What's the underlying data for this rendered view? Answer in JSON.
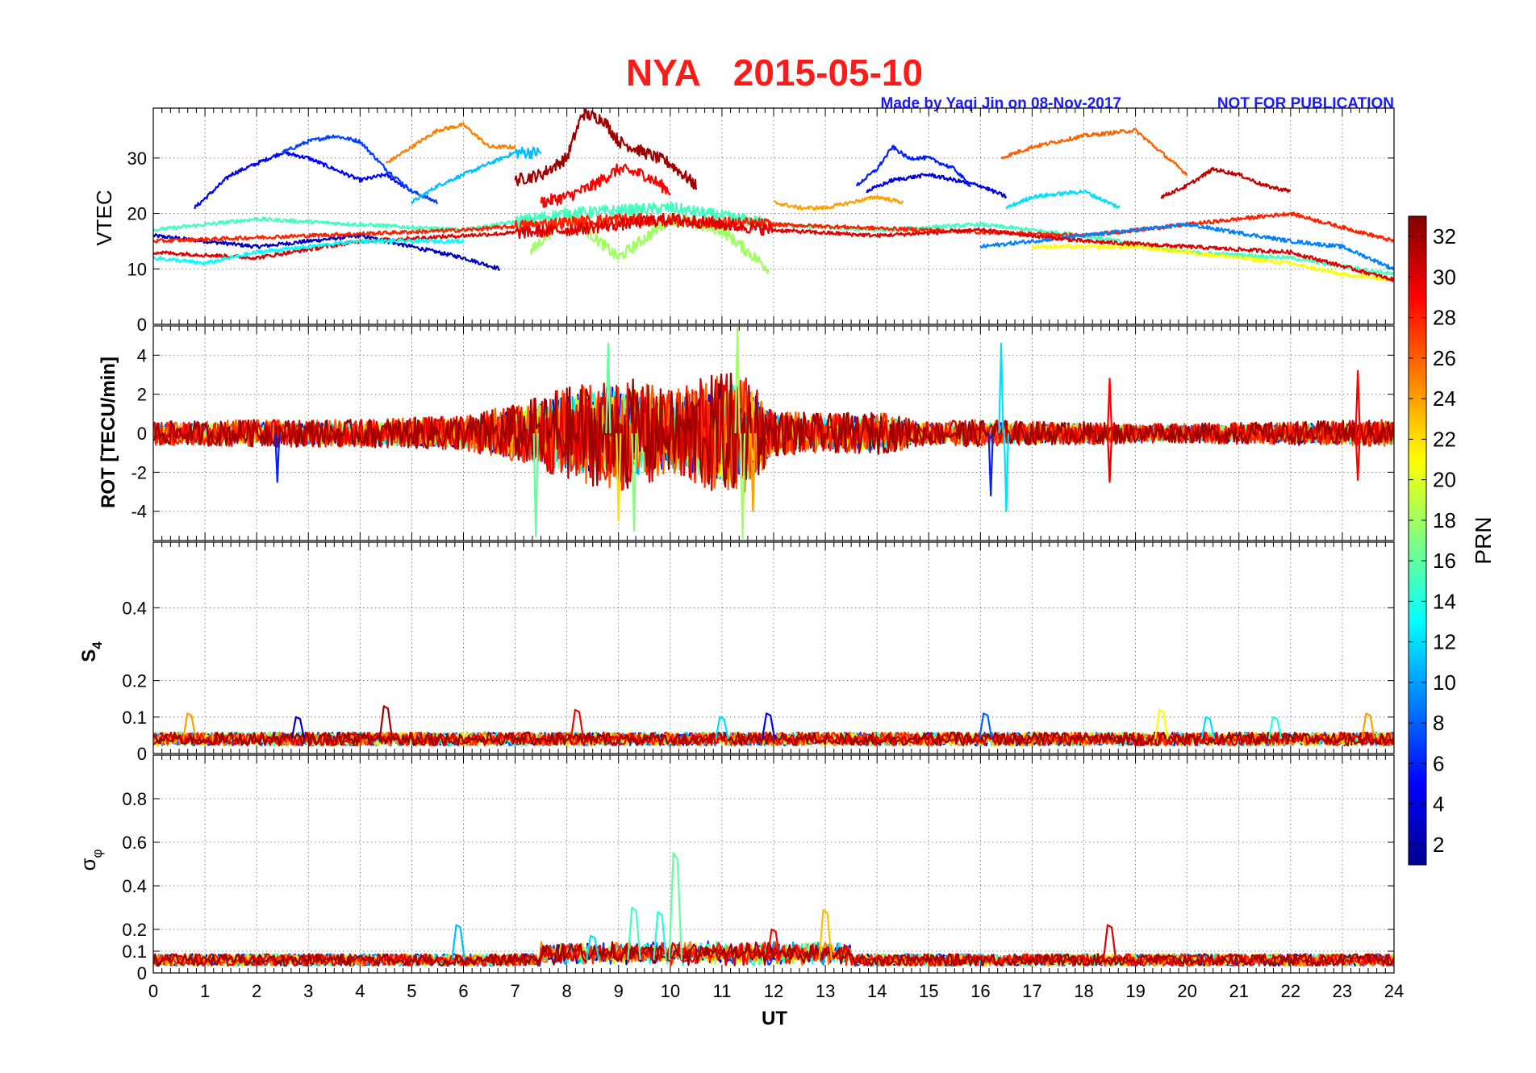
{
  "header": {
    "title_station": "NYA",
    "title_date": "2015-05-10",
    "credit": "Made by Yaqi Jin on 08-Nov-2017",
    "notice": "NOT FOR PUBLICATION"
  },
  "colors": {
    "title": "#ff1a1a",
    "credit": "#1a1aff"
  },
  "chart_data": [
    {
      "type": "line",
      "panel": "VTEC",
      "ylabel": "VTEC",
      "xlim": [
        0,
        24
      ],
      "ylim": [
        0,
        39
      ],
      "yticks": [
        0,
        10,
        20,
        30
      ],
      "series": [
        {
          "prn": 3,
          "x": [
            0.0,
            1.0,
            2.0,
            3.0,
            4.0,
            5.0,
            6.0,
            6.7
          ],
          "values": [
            16,
            15,
            14,
            15,
            16,
            14,
            12,
            10
          ]
        },
        {
          "prn": 5,
          "x": [
            0.8,
            1.5,
            2.0,
            2.5,
            3.0,
            3.5,
            4.0,
            4.5,
            5.0
          ],
          "values": [
            21,
            27,
            29,
            31,
            30,
            28,
            26,
            27,
            24
          ]
        },
        {
          "prn": 7,
          "x": [
            2.5,
            3.0,
            3.5,
            4.0,
            4.5,
            5.0,
            5.5
          ],
          "values": [
            31,
            33,
            34,
            33,
            28,
            24,
            22
          ]
        },
        {
          "prn": 11,
          "x": [
            5.0,
            5.5,
            6.0,
            6.5,
            7.0,
            7.5
          ],
          "values": [
            22,
            25,
            27,
            29,
            31,
            31
          ]
        },
        {
          "prn": 25,
          "x": [
            4.5,
            5.0,
            5.5,
            6.0,
            6.5,
            7.0
          ],
          "values": [
            29,
            32,
            35,
            36,
            32,
            32
          ]
        },
        {
          "prn": 32,
          "x": [
            7.0,
            7.5,
            8.0,
            8.3,
            8.7,
            9.0,
            9.5,
            10.0,
            10.5
          ],
          "values": [
            26,
            27,
            30,
            38,
            37,
            33,
            31,
            29,
            25
          ]
        },
        {
          "prn": 29,
          "x": [
            7.5,
            8.0,
            8.5,
            9.0,
            9.5,
            10.0
          ],
          "values": [
            22,
            23,
            25,
            28,
            27,
            24
          ]
        },
        {
          "prn": 18,
          "x": [
            7.3,
            8.0,
            9.0,
            10.0,
            11.0,
            11.9
          ],
          "values": [
            13,
            20,
            12,
            19,
            17,
            10
          ]
        },
        {
          "prn": 15,
          "x": [
            0.0,
            2.0,
            4.0,
            6.0,
            8.0,
            10.0,
            12.0,
            14.0,
            16.0,
            18.0,
            20.0,
            22.0,
            24.0
          ],
          "values": [
            17,
            19,
            18,
            17,
            20,
            21,
            18,
            17,
            18,
            16,
            13,
            12,
            9
          ]
        },
        {
          "prn": 24,
          "x": [
            12.0,
            12.5,
            13.0,
            13.5,
            14.0,
            14.5
          ],
          "values": [
            22,
            21,
            21,
            22,
            23,
            22
          ]
        },
        {
          "prn": 6,
          "x": [
            13.6,
            14.0,
            14.3,
            14.6,
            15.0,
            15.5,
            15.8
          ],
          "values": [
            25,
            28,
            32,
            30,
            30,
            28,
            25
          ]
        },
        {
          "prn": 4,
          "x": [
            13.8,
            14.3,
            15.0,
            15.5,
            16.0,
            16.5
          ],
          "values": [
            24,
            26,
            27,
            26,
            25,
            23
          ]
        },
        {
          "prn": 12,
          "x": [
            16.5,
            17.0,
            18.0,
            18.7
          ],
          "values": [
            21,
            23,
            24,
            21
          ]
        },
        {
          "prn": 26,
          "x": [
            16.4,
            17.0,
            18.0,
            19.0,
            19.5,
            20.0
          ],
          "values": [
            30,
            32,
            34,
            35,
            31,
            27
          ]
        },
        {
          "prn": 31,
          "x": [
            19.5,
            20.0,
            20.5,
            21.0,
            21.5,
            22.0
          ],
          "values": [
            23,
            25,
            28,
            27,
            25,
            24
          ]
        },
        {
          "prn": 28,
          "x": [
            0.0,
            3.0,
            6.0,
            9.0,
            12.0,
            15.0,
            18.0,
            21.0,
            22.0,
            24.0
          ],
          "values": [
            15,
            16,
            17,
            19,
            18,
            17,
            16,
            19,
            20,
            15
          ]
        },
        {
          "prn": 9,
          "x": [
            16.0,
            18.0,
            20.0,
            22.0,
            23.0,
            24.0
          ],
          "values": [
            14,
            16,
            18,
            15,
            14,
            10
          ]
        },
        {
          "prn": 21,
          "x": [
            17.0,
            19.0,
            21.0,
            22.0,
            23.0,
            24.0
          ],
          "values": [
            14,
            14,
            12,
            11,
            9,
            8
          ]
        },
        {
          "prn": 30,
          "x": [
            0.0,
            2.0,
            4.0,
            6.0,
            8.0,
            10.0,
            12.0,
            14.0,
            16.0,
            18.0,
            20.0,
            22.0,
            24.0
          ],
          "values": [
            13,
            12,
            15,
            16,
            17,
            19,
            17,
            16,
            17,
            15,
            14,
            13,
            8
          ]
        },
        {
          "prn": 13,
          "x": [
            0.0,
            1.0,
            2.0,
            3.0,
            4.0,
            5.0,
            6.0
          ],
          "values": [
            12,
            11,
            13,
            14,
            15,
            15,
            15
          ]
        }
      ]
    },
    {
      "type": "line",
      "panel": "ROT",
      "ylabel": "ROT [TECU/min]",
      "xlim": [
        0,
        24
      ],
      "ylim": [
        -5.5,
        5.5
      ],
      "yticks": [
        -4,
        -2,
        0,
        2,
        4
      ],
      "envelope": {
        "x": [
          0,
          2,
          4,
          6,
          7,
          8,
          9,
          10,
          11,
          11.5,
          12,
          13,
          14,
          15,
          16,
          17,
          18,
          19,
          20,
          22,
          24
        ],
        "amplitude": [
          0.6,
          0.7,
          0.7,
          0.9,
          1.5,
          2.4,
          3.0,
          2.2,
          3.2,
          3.0,
          1.2,
          1.0,
          1.1,
          0.6,
          0.7,
          0.6,
          0.6,
          0.5,
          0.5,
          0.6,
          0.7
        ]
      },
      "spikes": [
        {
          "x": 2.4,
          "value": -2.5,
          "prn": 6
        },
        {
          "x": 7.4,
          "value": -5.3,
          "prn": 16
        },
        {
          "x": 8.8,
          "value": 4.6,
          "prn": 16
        },
        {
          "x": 9.0,
          "value": -4.5,
          "prn": 22
        },
        {
          "x": 9.3,
          "value": -5.0,
          "prn": 17
        },
        {
          "x": 11.3,
          "value": 5.4,
          "prn": 18
        },
        {
          "x": 11.4,
          "value": -5.4,
          "prn": 18
        },
        {
          "x": 11.6,
          "value": -4.0,
          "prn": 24
        },
        {
          "x": 16.2,
          "value": -3.2,
          "prn": 6
        },
        {
          "x": 16.4,
          "value": 4.6,
          "prn": 12
        },
        {
          "x": 16.5,
          "value": -4.0,
          "prn": 12
        },
        {
          "x": 18.5,
          "value": 2.8,
          "prn": 29
        },
        {
          "x": 18.5,
          "value": -2.5,
          "prn": 30
        },
        {
          "x": 23.3,
          "value": 3.2,
          "prn": 29
        },
        {
          "x": 23.3,
          "value": -2.4,
          "prn": 29
        }
      ]
    },
    {
      "type": "line",
      "panel": "S4",
      "ylabel": "S",
      "ylabel_sub": "4",
      "xlim": [
        0,
        24
      ],
      "ylim": [
        0,
        0.58
      ],
      "yticks": [
        0,
        0.1,
        0.2,
        0.4
      ],
      "baseline": 0.04,
      "bumps": [
        {
          "x": 0.7,
          "value": 0.11,
          "prn": 24
        },
        {
          "x": 2.8,
          "value": 0.1,
          "prn": 3
        },
        {
          "x": 4.5,
          "value": 0.13,
          "prn": 32
        },
        {
          "x": 8.2,
          "value": 0.12,
          "prn": 29
        },
        {
          "x": 11.0,
          "value": 0.1,
          "prn": 12
        },
        {
          "x": 11.9,
          "value": 0.11,
          "prn": 5
        },
        {
          "x": 16.1,
          "value": 0.11,
          "prn": 8
        },
        {
          "x": 19.5,
          "value": 0.12,
          "prn": 21
        },
        {
          "x": 20.4,
          "value": 0.1,
          "prn": 12
        },
        {
          "x": 21.7,
          "value": 0.1,
          "prn": 14
        },
        {
          "x": 23.5,
          "value": 0.11,
          "prn": 24
        }
      ]
    },
    {
      "type": "line",
      "panel": "sigma_phi",
      "ylabel": "σ",
      "ylabel_sub": "φ",
      "xlim": [
        0,
        24
      ],
      "ylim": [
        0,
        1.0
      ],
      "yticks": [
        0,
        0.1,
        0.2,
        0.4,
        0.6,
        0.8
      ],
      "baseline": 0.06,
      "bumps": [
        {
          "x": 5.9,
          "value": 0.22,
          "prn": 11
        },
        {
          "x": 8.5,
          "value": 0.17,
          "prn": 12
        },
        {
          "x": 9.3,
          "value": 0.3,
          "prn": 15
        },
        {
          "x": 9.8,
          "value": 0.28,
          "prn": 14
        },
        {
          "x": 10.1,
          "value": 0.55,
          "prn": 16
        },
        {
          "x": 12.0,
          "value": 0.2,
          "prn": 29
        },
        {
          "x": 13.0,
          "value": 0.29,
          "prn": 23
        },
        {
          "x": 18.5,
          "value": 0.22,
          "prn": 30
        }
      ]
    }
  ],
  "x_axis": {
    "label": "UT",
    "ticks": [
      "0",
      "1",
      "2",
      "3",
      "4",
      "5",
      "6",
      "7",
      "8",
      "9",
      "10",
      "11",
      "12",
      "13",
      "14",
      "15",
      "16",
      "17",
      "18",
      "19",
      "20",
      "21",
      "22",
      "23",
      "24"
    ]
  },
  "colorbar": {
    "label": "PRN",
    "min": 1,
    "max": 33,
    "colormap": "jet",
    "ticks": [
      "2",
      "4",
      "6",
      "8",
      "10",
      "12",
      "14",
      "16",
      "18",
      "20",
      "22",
      "24",
      "26",
      "28",
      "30",
      "32"
    ]
  }
}
